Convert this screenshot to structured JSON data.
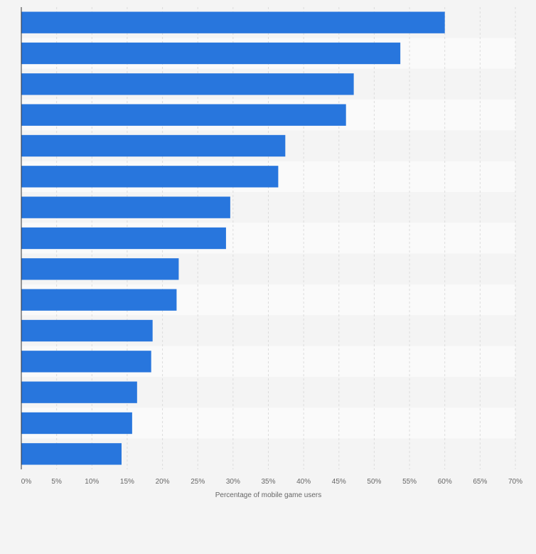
{
  "chart_data": {
    "type": "bar",
    "orientation": "horizontal",
    "categories": [
      "",
      "",
      "",
      "",
      "",
      "",
      "",
      "",
      "",
      "",
      "",
      "",
      "",
      "",
      ""
    ],
    "values": [
      60,
      53.7,
      47.1,
      46,
      37.4,
      36.4,
      29.6,
      29,
      22.3,
      22,
      18.6,
      18.4,
      16.4,
      15.7,
      14.2
    ],
    "xlim": [
      0,
      70
    ],
    "x_ticks": [
      "0%",
      "5%",
      "10%",
      "15%",
      "20%",
      "25%",
      "30%",
      "35%",
      "40%",
      "45%",
      "50%",
      "55%",
      "60%",
      "65%",
      "70%"
    ],
    "xlabel": "Percentage of mobile game users",
    "ylabel": "",
    "title": "",
    "grid": true,
    "bar_color": "#2876dd",
    "band_colors": [
      "#f4f4f4",
      "#fafafa"
    ],
    "grid_color": "#dcdcdc"
  }
}
